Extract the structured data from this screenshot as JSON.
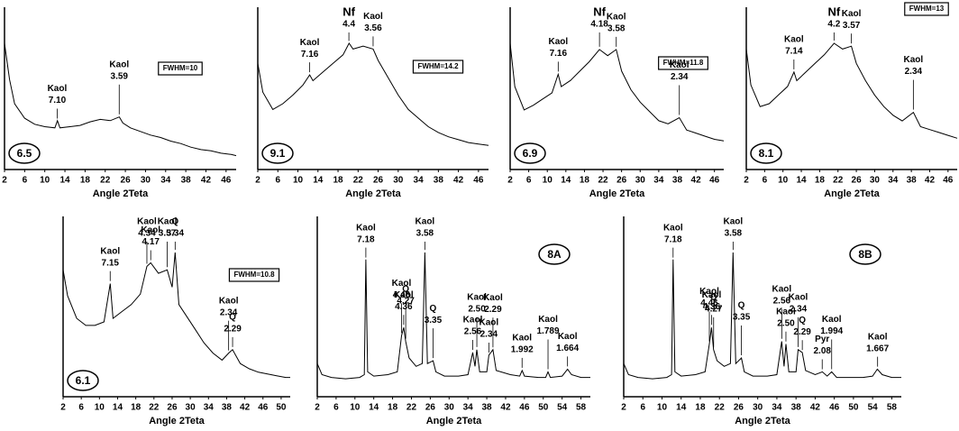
{
  "chart_data": [
    {
      "type": "line",
      "sample": "6.5",
      "fwhm": "FWHM=10",
      "x_label": "Angle 2Teta",
      "color": "#000000",
      "xlim": [
        2,
        48
      ],
      "xticks": [
        2,
        6,
        10,
        14,
        18,
        22,
        26,
        30,
        34,
        38,
        42,
        46
      ],
      "x": [
        2,
        3,
        4,
        6,
        8,
        10,
        12,
        12.5,
        13,
        15,
        17,
        19,
        21,
        23,
        24.8,
        25.5,
        27,
        29,
        31,
        33,
        35,
        37,
        39,
        41,
        43,
        45,
        47,
        48
      ],
      "values": [
        100,
        70,
        50,
        38,
        33,
        31,
        30,
        36,
        30,
        31,
        32,
        35,
        37,
        36,
        39,
        34,
        30,
        27,
        24,
        22,
        19,
        17,
        14,
        12,
        11,
        9,
        8,
        7
      ],
      "annotations": [
        {
          "phase": "Kaol",
          "d": {
            "value": 7.1,
            "label": "7.10"
          }
        },
        {
          "phase": "Kaol",
          "d": 3.59
        }
      ]
    },
    {
      "type": "line",
      "sample": "9.1",
      "fwhm": "FWHM=14.2",
      "x_label": "Angle 2Teta",
      "color": "#000000",
      "xlim": [
        2,
        48
      ],
      "xticks": [
        2,
        6,
        10,
        14,
        18,
        22,
        26,
        30,
        34,
        38,
        42,
        46
      ],
      "x": [
        2,
        3,
        5,
        7,
        9,
        11,
        12.35,
        13,
        15,
        17,
        19,
        20.2,
        21,
        23,
        25,
        26,
        28,
        30,
        32,
        34,
        36,
        38,
        40,
        42,
        44,
        46,
        48
      ],
      "values": [
        70,
        50,
        38,
        42,
        48,
        55,
        62,
        58,
        64,
        70,
        76,
        84,
        80,
        82,
        80,
        72,
        60,
        48,
        38,
        32,
        26,
        22,
        19,
        17,
        15,
        14,
        13
      ],
      "annotations": [
        {
          "phase": "Kaol",
          "d": 7.16
        },
        {
          "phase": "Nf",
          "d": 4.4
        },
        {
          "phase": "Kaol",
          "d": 3.56
        }
      ]
    },
    {
      "type": "line",
      "sample": "6.9",
      "fwhm": "FWHM=11.8",
      "x_label": "Angle 2Teta",
      "color": "#000000",
      "xlim": [
        2,
        48
      ],
      "xticks": [
        2,
        6,
        10,
        14,
        18,
        22,
        26,
        30,
        34,
        38,
        42,
        46
      ],
      "x": [
        2,
        3,
        5,
        7,
        9,
        11,
        12.35,
        13,
        15,
        17,
        19,
        21.24,
        23,
        24.85,
        26,
        28,
        30,
        32,
        34,
        36,
        38.44,
        40,
        42,
        44,
        46,
        48
      ],
      "values": [
        78,
        50,
        35,
        38,
        42,
        46,
        58,
        50,
        54,
        60,
        66,
        74,
        70,
        74,
        60,
        48,
        40,
        34,
        28,
        26,
        30,
        22,
        20,
        18,
        16,
        15
      ],
      "annotations": [
        {
          "phase": "Kaol",
          "d": 7.16
        },
        {
          "phase": "Nf",
          "d": 4.18
        },
        {
          "phase": "Kaol",
          "d": 3.58
        },
        {
          "phase": "Kaol",
          "d": 2.34
        }
      ]
    },
    {
      "type": "line",
      "sample": "8.1",
      "fwhm": "FWHM=13",
      "x_label": "Angle 2Teta",
      "color": "#000000",
      "xlim": [
        2,
        48
      ],
      "xticks": [
        2,
        6,
        10,
        14,
        18,
        22,
        26,
        30,
        34,
        38,
        42,
        46
      ],
      "x": [
        2,
        3,
        5,
        7,
        9,
        11,
        12.39,
        13,
        15,
        17,
        19,
        21.14,
        23,
        24.92,
        26,
        28,
        30,
        32,
        34,
        36,
        38.44,
        40,
        42,
        44,
        46,
        48
      ],
      "values": [
        80,
        55,
        40,
        42,
        48,
        54,
        64,
        58,
        64,
        70,
        76,
        84,
        80,
        82,
        70,
        58,
        48,
        40,
        34,
        30,
        36,
        26,
        24,
        22,
        20,
        18
      ],
      "annotations": [
        {
          "phase": "Kaol",
          "d": 7.14
        },
        {
          "phase": "Nf",
          "d": 4.2
        },
        {
          "phase": "Kaol",
          "d": 3.57
        },
        {
          "phase": "Kaol",
          "d": 2.34
        }
      ]
    },
    {
      "type": "line",
      "sample": "6.1",
      "fwhm": "FWHM=10.8",
      "x_label": "Angle 2Teta",
      "color": "#000000",
      "xlim": [
        2,
        52
      ],
      "xticks": [
        2,
        6,
        10,
        14,
        18,
        22,
        26,
        30,
        34,
        38,
        42,
        46,
        50
      ],
      "x": [
        2,
        3,
        5,
        7,
        9,
        11,
        12.37,
        13,
        15,
        17,
        19,
        20.45,
        21.29,
        23,
        24.92,
        26,
        26.67,
        27.5,
        29,
        31,
        33,
        35,
        37,
        38.44,
        39.3,
        41,
        43,
        45,
        47,
        49,
        51,
        52
      ],
      "values": [
        70,
        55,
        42,
        38,
        38,
        40,
        62,
        42,
        46,
        50,
        56,
        72,
        74,
        68,
        70,
        60,
        80,
        50,
        44,
        36,
        28,
        22,
        18,
        22,
        24,
        16,
        13,
        11,
        10,
        9,
        8,
        8
      ],
      "annotations": [
        {
          "phase": "Kaol",
          "d": 7.15
        },
        {
          "phase": "Kaol",
          "d": 4.34
        },
        {
          "phase": "Kaol",
          "d": 4.17
        },
        {
          "phase": "Kaol",
          "d": 3.57
        },
        {
          "phase": "Q",
          "d": 3.34
        },
        {
          "phase": "Kaol",
          "d": 2.34
        },
        {
          "phase": "Q",
          "d": 2.29
        }
      ]
    },
    {
      "type": "line",
      "sample": "8A",
      "x_label": "Angle 2Teta",
      "color": "#000000",
      "xlim": [
        2,
        60
      ],
      "xticks": [
        2,
        6,
        10,
        14,
        18,
        22,
        26,
        30,
        34,
        38,
        42,
        46,
        50,
        54,
        58
      ],
      "x": [
        2,
        3,
        5,
        8,
        11,
        12,
        12.32,
        12.7,
        14,
        17,
        19,
        19.89,
        20.35,
        20.78,
        21.5,
        23,
        24.3,
        24.85,
        25.4,
        26.59,
        27.2,
        29,
        32,
        34,
        35.02,
        35.5,
        35.89,
        36.5,
        38,
        38.44,
        39.3,
        40,
        43,
        45,
        45.5,
        46,
        49,
        50.5,
        51,
        51.5,
        54,
        55.15,
        56,
        58,
        60
      ],
      "values": [
        20,
        12,
        10,
        9,
        10,
        12,
        95,
        14,
        11,
        12,
        14,
        40,
        46,
        36,
        24,
        18,
        20,
        100,
        20,
        22,
        14,
        11,
        11,
        12,
        28,
        18,
        30,
        14,
        14,
        26,
        30,
        15,
        12,
        11,
        15,
        11,
        10,
        10,
        14,
        10,
        11,
        16,
        12,
        10,
        10
      ],
      "annotations": [
        {
          "phase": "Kaol",
          "d": 7.18
        },
        {
          "phase": "Kaol",
          "d": 4.46
        },
        {
          "phase": "Kaol",
          "d": 4.36
        },
        {
          "phase": "Q",
          "d": 4.27
        },
        {
          "phase": "Kaol",
          "d": 3.58
        },
        {
          "phase": "Q",
          "d": 3.35
        },
        {
          "phase": "Kaol",
          "d": 2.56
        },
        {
          "phase": "Kaol",
          "d": {
            "value": 2.5,
            "label": "2.50"
          }
        },
        {
          "phase": "Kaol",
          "d": 2.34
        },
        {
          "phase": "Kaol",
          "d": 2.29
        },
        {
          "phase": "Kaol",
          "d": 1.992
        },
        {
          "phase": "Kaol",
          "d": 1.789
        },
        {
          "phase": "Kaol",
          "d": 1.664
        }
      ]
    },
    {
      "type": "line",
      "sample": "8B",
      "x_label": "Angle 2Teta",
      "color": "#000000",
      "xlim": [
        2,
        60
      ],
      "xticks": [
        2,
        6,
        10,
        14,
        18,
        22,
        26,
        30,
        34,
        38,
        42,
        46,
        50,
        54,
        58
      ],
      "x": [
        2,
        3,
        5,
        8,
        11,
        12,
        12.32,
        12.7,
        14,
        17,
        19,
        19.89,
        20.35,
        20.78,
        21.5,
        23,
        24.3,
        24.85,
        25.4,
        26.59,
        27.2,
        29,
        32,
        34,
        35.02,
        35.5,
        35.89,
        36.5,
        38,
        38.44,
        39.3,
        40,
        42,
        43.5,
        44.5,
        45.45,
        46.5,
        49,
        52,
        54,
        55,
        56,
        58,
        60
      ],
      "values": [
        20,
        12,
        10,
        9,
        10,
        12,
        95,
        14,
        11,
        12,
        14,
        34,
        46,
        30,
        22,
        18,
        20,
        100,
        20,
        24,
        14,
        11,
        11,
        12,
        36,
        18,
        34,
        14,
        14,
        30,
        28,
        15,
        12,
        14,
        11,
        14,
        10,
        10,
        10,
        11,
        16,
        12,
        10,
        10
      ],
      "annotations": [
        {
          "phase": "Kaol",
          "d": 7.18
        },
        {
          "phase": "Kaol",
          "d": 4.46
        },
        {
          "phase": "Kaol",
          "d": 4.36
        },
        {
          "phase": "Q",
          "d": 4.27
        },
        {
          "phase": "Kaol",
          "d": 3.58
        },
        {
          "phase": "Q",
          "d": 3.35
        },
        {
          "phase": "Pyr",
          "d": 2.08
        },
        {
          "phase": "Kaol",
          "d": 2.56
        },
        {
          "phase": "Kaol",
          "d": {
            "value": 2.5,
            "label": "2.50"
          }
        },
        {
          "phase": "Kaol",
          "d": 2.34
        },
        {
          "phase": "Q",
          "d": 2.29
        },
        {
          "phase": "Kaol",
          "d": 1.994
        },
        {
          "phase": "Kaol",
          "d": 1.667
        }
      ]
    }
  ]
}
